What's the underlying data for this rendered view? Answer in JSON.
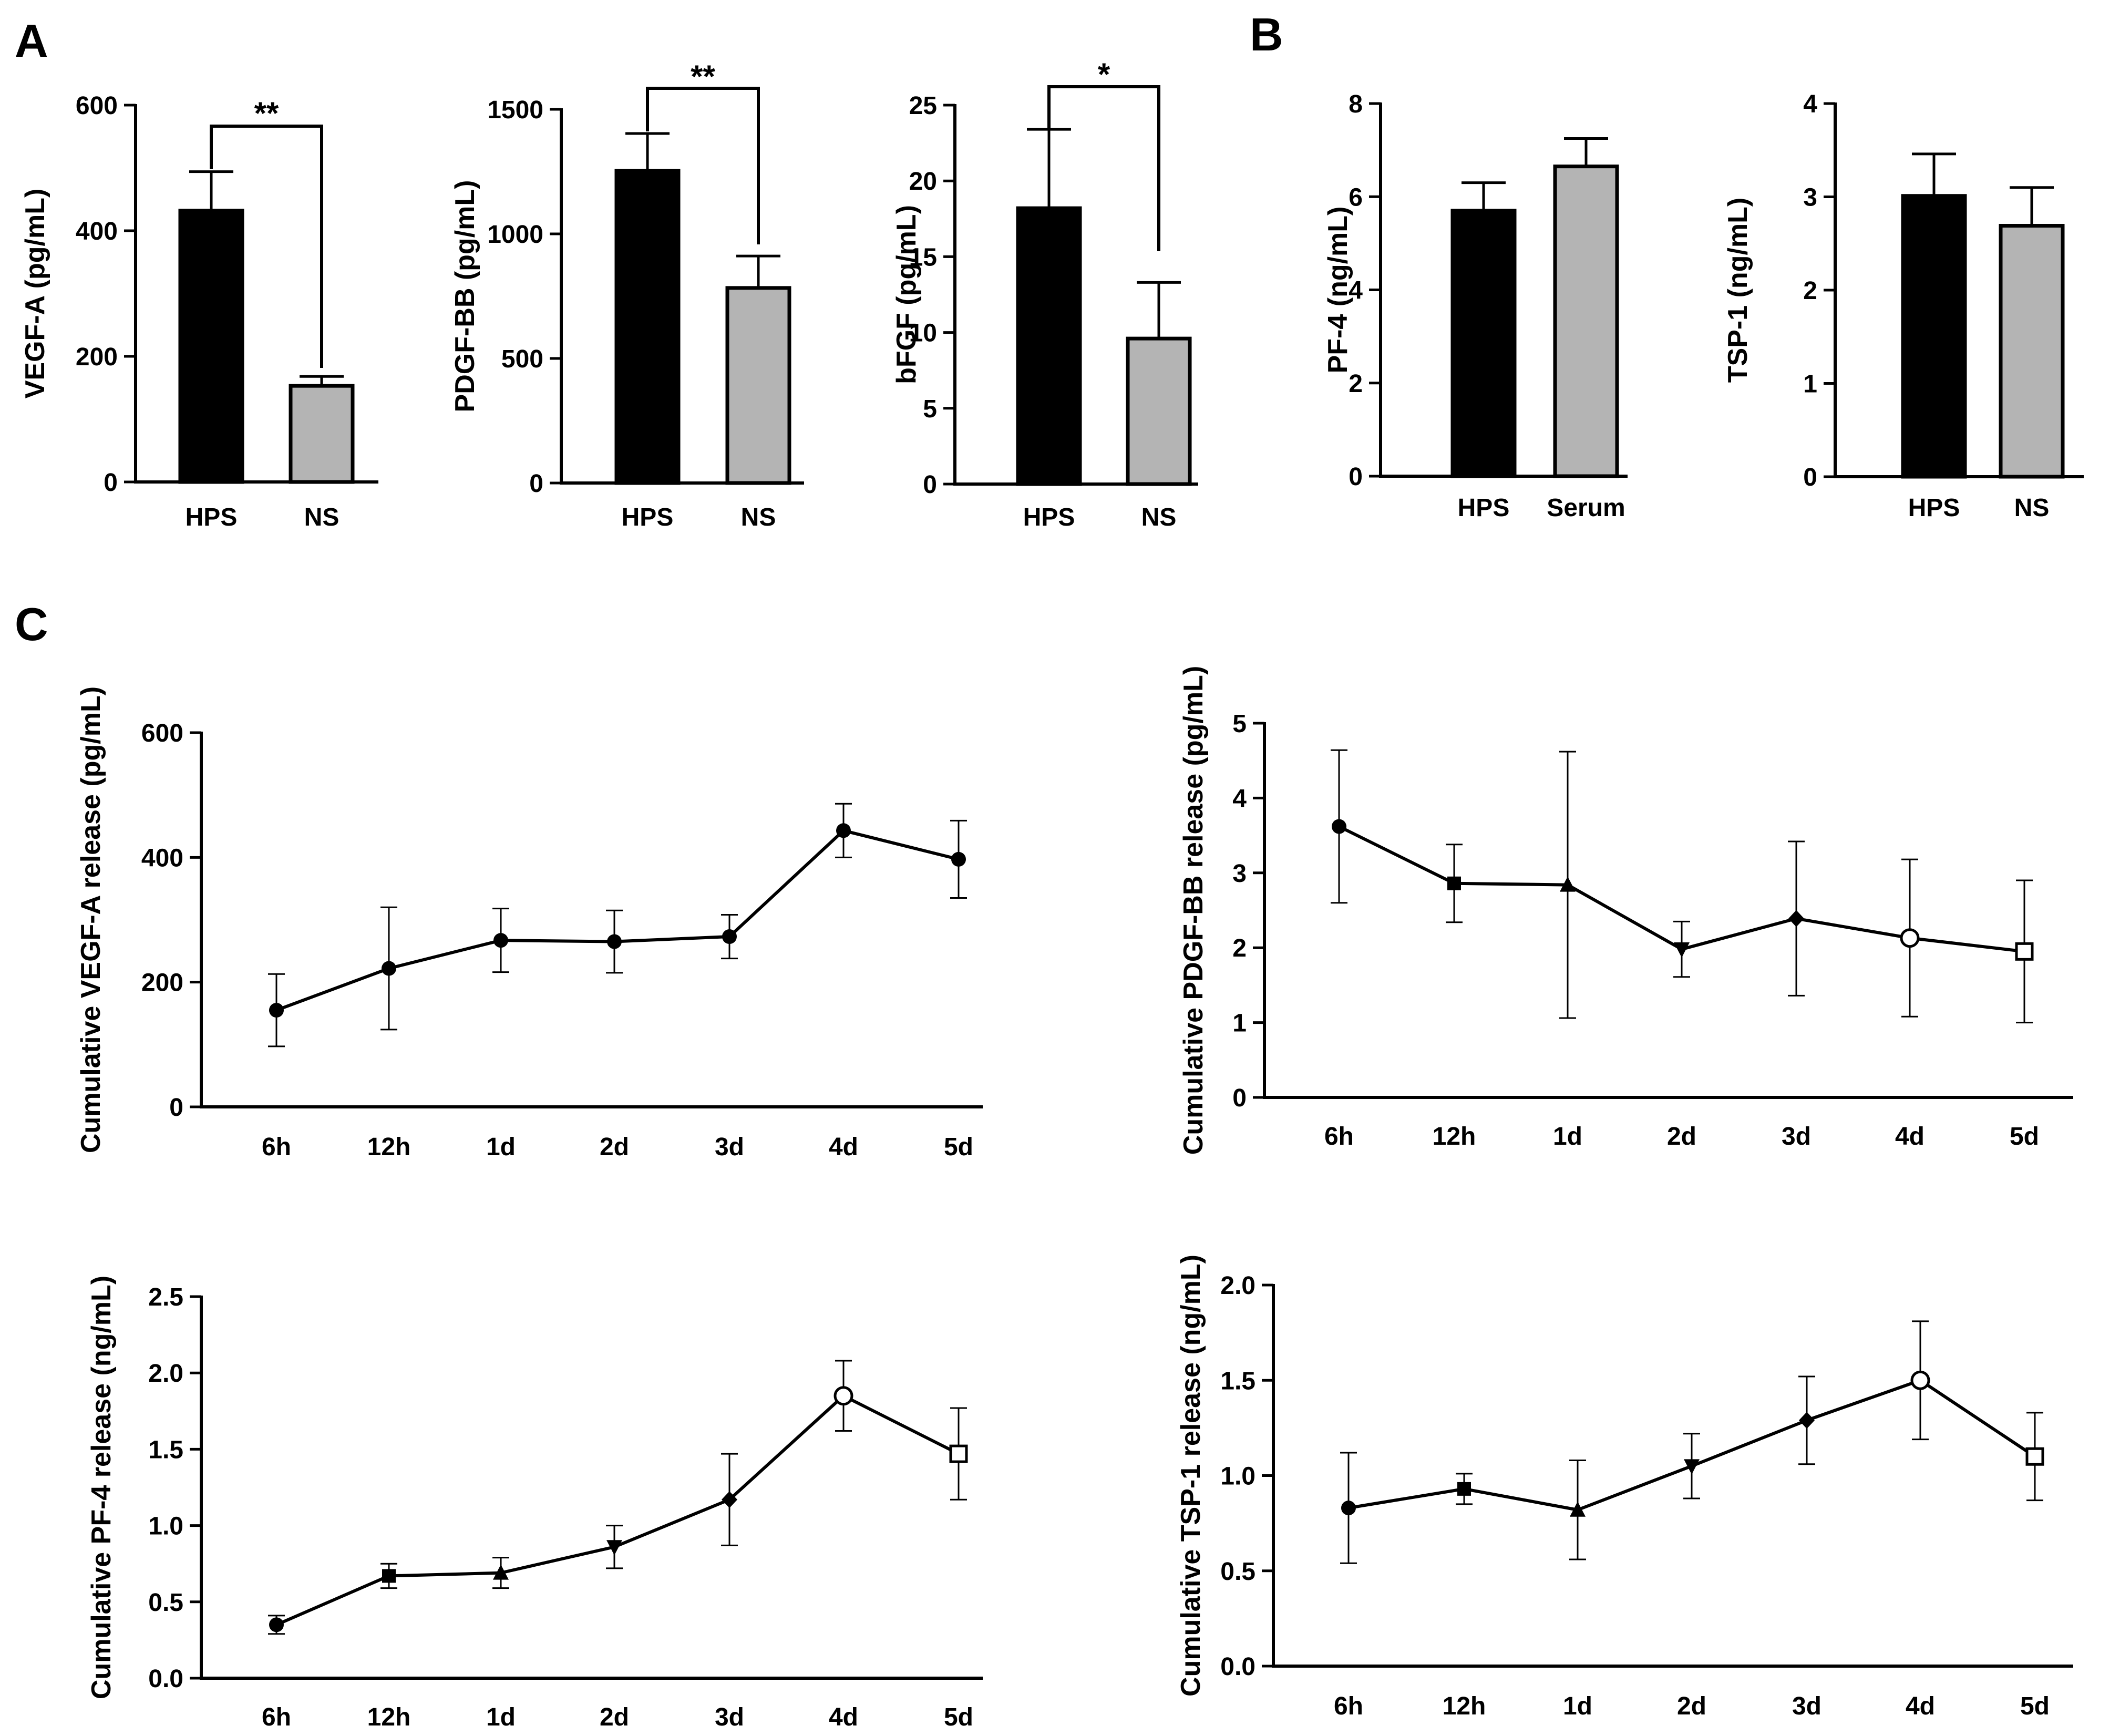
{
  "panel_labels": {
    "A": "A",
    "B": "B",
    "C": "C"
  },
  "colors": {
    "hps_bar": "#000000",
    "ns_bar": "#b4b4b4",
    "axis": "#000000",
    "line": "#000000"
  },
  "chart_data": [
    {
      "id": "vegf-bar",
      "panel": "A",
      "type": "bar",
      "categories": [
        "HPS",
        "NS"
      ],
      "values": [
        432,
        153
      ],
      "errors": [
        62,
        15
      ],
      "ylabel": "VEGF-A (pg/mL)",
      "ylim": [
        0,
        600
      ],
      "yticks": [
        0,
        200,
        400,
        600
      ],
      "significance": "**"
    },
    {
      "id": "pdgf-bar",
      "panel": "A",
      "type": "bar",
      "categories": [
        "HPS",
        "NS"
      ],
      "values": [
        1253,
        783
      ],
      "errors": [
        150,
        128
      ],
      "ylabel": "PDGF-BB (pg/mL)",
      "ylim": [
        0,
        1500
      ],
      "yticks": [
        0,
        500,
        1000,
        1500
      ],
      "significance": "**"
    },
    {
      "id": "bfgf-bar",
      "panel": "A",
      "type": "bar",
      "categories": [
        "HPS",
        "NS"
      ],
      "values": [
        18.2,
        9.6
      ],
      "errors": [
        5.2,
        3.7
      ],
      "ylabel": "bFGF (pg/mL)",
      "ylim": [
        0,
        25
      ],
      "yticks": [
        0,
        5,
        10,
        15,
        20,
        25
      ],
      "significance": "*"
    },
    {
      "id": "pf4-bar",
      "panel": "B",
      "type": "bar",
      "categories": [
        "HPS",
        "Serum"
      ],
      "values": [
        5.7,
        6.65
      ],
      "errors": [
        0.6,
        0.6
      ],
      "ylabel": "PF-4 (ng/mL)",
      "ylim": [
        0,
        8
      ],
      "yticks": [
        0,
        2,
        4,
        6,
        8
      ]
    },
    {
      "id": "tsp1-bar",
      "panel": "B",
      "type": "bar",
      "categories": [
        "HPS",
        "NS"
      ],
      "values": [
        3.01,
        2.69
      ],
      "errors": [
        0.45,
        0.41
      ],
      "ylabel": "TSP-1 (ng/mL)",
      "ylim": [
        0,
        4
      ],
      "yticks": [
        0,
        1,
        2,
        3,
        4
      ]
    },
    {
      "id": "vegf-line",
      "panel": "C",
      "type": "line",
      "categories": [
        "6h",
        "12h",
        "1d",
        "2d",
        "3d",
        "4d",
        "5d"
      ],
      "values": [
        155,
        222,
        267,
        265,
        273,
        443,
        397
      ],
      "errors": [
        58,
        98,
        51,
        50,
        35,
        43,
        62
      ],
      "markers": [
        "circle",
        "circle",
        "circle",
        "circle",
        "circle",
        "circle",
        "circle"
      ],
      "ylabel": "Cumulative VEGF-A release (pg/mL)",
      "ylim": [
        0,
        600
      ],
      "yticks": [
        0,
        200,
        400,
        600
      ]
    },
    {
      "id": "pdgf-line",
      "panel": "C",
      "type": "line",
      "categories": [
        "6h",
        "12h",
        "1d",
        "2d",
        "3d",
        "4d",
        "5d"
      ],
      "values": [
        3.62,
        2.86,
        2.84,
        1.98,
        2.39,
        2.13,
        1.95
      ],
      "errors": [
        1.02,
        0.52,
        1.78,
        0.37,
        1.03,
        1.05,
        0.95
      ],
      "markers": [
        "circle",
        "square",
        "triangle-up",
        "triangle-down",
        "diamond",
        "open-circle",
        "open-square"
      ],
      "ylabel": "Cumulative PDGF-BB release (pg/mL)",
      "ylim": [
        0,
        5
      ],
      "yticks": [
        0,
        1,
        2,
        3,
        4,
        5
      ]
    },
    {
      "id": "pf4-line",
      "panel": "C",
      "type": "line",
      "categories": [
        "6h",
        "12h",
        "1d",
        "2d",
        "3d",
        "4d",
        "5d"
      ],
      "values": [
        0.35,
        0.67,
        0.69,
        0.86,
        1.17,
        1.85,
        1.47
      ],
      "errors": [
        0.06,
        0.08,
        0.1,
        0.14,
        0.3,
        0.23,
        0.3
      ],
      "markers": [
        "circle",
        "square",
        "triangle-up",
        "triangle-down",
        "diamond",
        "open-circle",
        "open-square"
      ],
      "ylabel": "Cumulative PF-4 release (ng/mL)",
      "ylim": [
        0,
        2.5
      ],
      "yticks": [
        0.0,
        0.5,
        1.0,
        1.5,
        2.0,
        2.5
      ]
    },
    {
      "id": "tsp1-line",
      "panel": "C",
      "type": "line",
      "categories": [
        "6h",
        "12h",
        "1d",
        "2d",
        "3d",
        "4d",
        "5d"
      ],
      "values": [
        0.83,
        0.93,
        0.82,
        1.05,
        1.29,
        1.5,
        1.1
      ],
      "errors": [
        0.29,
        0.08,
        0.26,
        0.17,
        0.23,
        0.31,
        0.23
      ],
      "markers": [
        "circle",
        "square",
        "triangle-up",
        "triangle-down",
        "diamond",
        "open-circle",
        "open-square"
      ],
      "ylabel": "Cumulative TSP-1 release (ng/mL)",
      "ylim": [
        0,
        2.0
      ],
      "yticks": [
        0.0,
        0.5,
        1.0,
        1.5,
        2.0
      ]
    }
  ]
}
